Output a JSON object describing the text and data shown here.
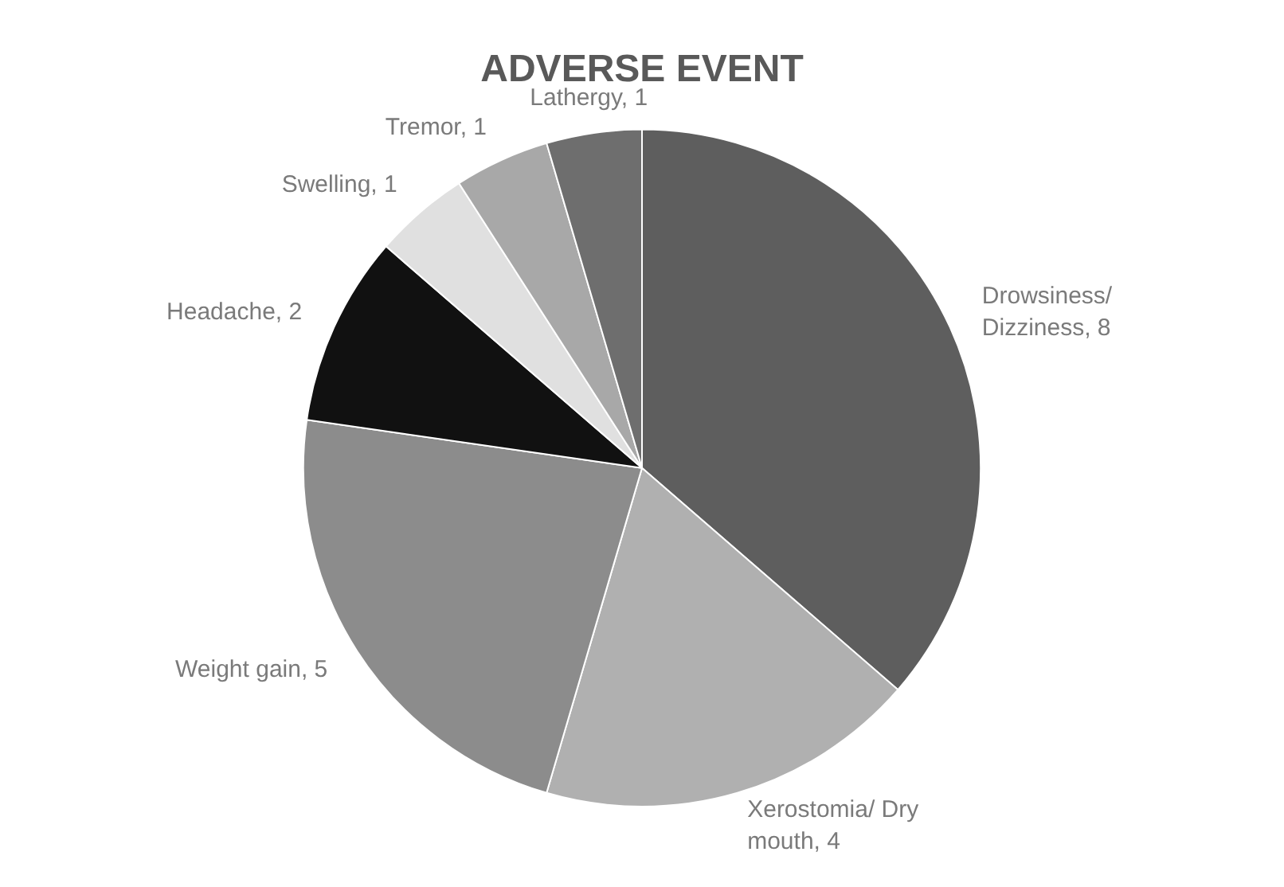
{
  "chart_data": {
    "type": "pie",
    "title": "ADVERSE EVENT",
    "categories": [
      "Drowsiness/ Dizziness, 8",
      "Xerostomia/ Dry mouth, 4",
      "Weight gain, 5",
      "Headache, 2",
      "Swelling, 1",
      "Tremor, 1",
      "Lathergy, 1"
    ],
    "values": [
      8,
      4,
      5,
      2,
      1,
      1,
      1
    ],
    "colors": [
      "#5e5e5e",
      "#b0b0b0",
      "#8c8c8c",
      "#111111",
      "#e0e0e0",
      "#a8a8a8",
      "#6e6e6e"
    ],
    "legend": false
  }
}
